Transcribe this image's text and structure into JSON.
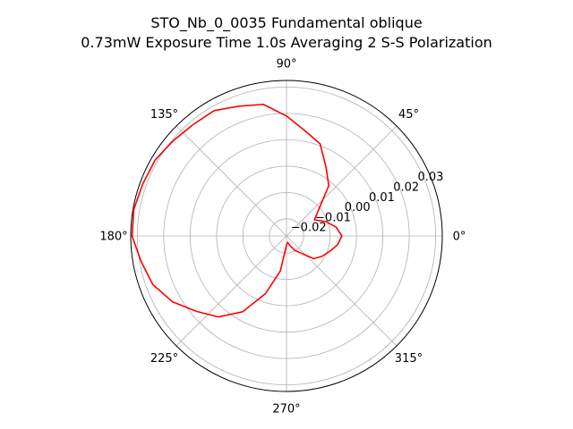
{
  "chart_data": {
    "type": "line",
    "projection": "polar",
    "title_line1": "STO_Nb_0_0035 Fundamental oblique",
    "title_line2": "0.73mW Exposure Time 1.0s Averaging 2 S-S  Polarization",
    "theta_ticks": [
      {
        "deg": 0,
        "label": "0°"
      },
      {
        "deg": 45,
        "label": "45°"
      },
      {
        "deg": 90,
        "label": "90°"
      },
      {
        "deg": 135,
        "label": "135°"
      },
      {
        "deg": 180,
        "label": "180°"
      },
      {
        "deg": 225,
        "label": "225°"
      },
      {
        "deg": 270,
        "label": "270°"
      },
      {
        "deg": 315,
        "label": "315°"
      }
    ],
    "r_ticks": [
      -0.02,
      -0.01,
      0.0,
      0.01,
      0.02,
      0.03
    ],
    "r_tick_labels": [
      "−0.02",
      "−0.01",
      "0.00",
      "0.01",
      "0.02",
      "0.03"
    ],
    "rlim": [
      -0.0265,
      0.0325
    ],
    "grid": true,
    "series": [
      {
        "color": "#ff0000",
        "points": [
          {
            "theta": 0,
            "r": -0.0055
          },
          {
            "theta": 10,
            "r": -0.0074
          },
          {
            "theta": 20,
            "r": -0.0106
          },
          {
            "theta": 30,
            "r": -0.0143
          },
          {
            "theta": 40,
            "r": -0.0104
          },
          {
            "theta": 50,
            "r": -0.0016
          },
          {
            "theta": 60,
            "r": 0.0035
          },
          {
            "theta": 70,
            "r": 0.0107
          },
          {
            "theta": 80,
            "r": 0.014
          },
          {
            "theta": 90,
            "r": 0.019
          },
          {
            "theta": 100,
            "r": 0.0242
          },
          {
            "theta": 110,
            "r": 0.0259
          },
          {
            "theta": 120,
            "r": 0.0284
          },
          {
            "theta": 130,
            "r": 0.0286
          },
          {
            "theta": 140,
            "r": 0.0296
          },
          {
            "theta": 150,
            "r": 0.031
          },
          {
            "theta": 160,
            "r": 0.0314
          },
          {
            "theta": 170,
            "r": 0.0322
          },
          {
            "theta": 180,
            "r": 0.032
          },
          {
            "theta": 190,
            "r": 0.0294
          },
          {
            "theta": 200,
            "r": 0.0274
          },
          {
            "theta": 210,
            "r": 0.0234
          },
          {
            "theta": 220,
            "r": 0.018
          },
          {
            "theta": 230,
            "r": 0.0136
          },
          {
            "theta": 240,
            "r": 0.0067
          },
          {
            "theta": 250,
            "r": -0.0032
          },
          {
            "theta": 260,
            "r": -0.013
          },
          {
            "theta": 270,
            "r": -0.023
          },
          {
            "theta": 280,
            "r": -0.024
          },
          {
            "theta": 290,
            "r": -0.0225
          },
          {
            "theta": 300,
            "r": -0.0202
          },
          {
            "theta": 310,
            "r": -0.018
          },
          {
            "theta": 320,
            "r": -0.0131
          },
          {
            "theta": 330,
            "r": -0.011
          },
          {
            "theta": 340,
            "r": -0.0092
          },
          {
            "theta": 350,
            "r": -0.0069
          },
          {
            "theta": 360,
            "r": -0.0055
          }
        ]
      }
    ]
  }
}
